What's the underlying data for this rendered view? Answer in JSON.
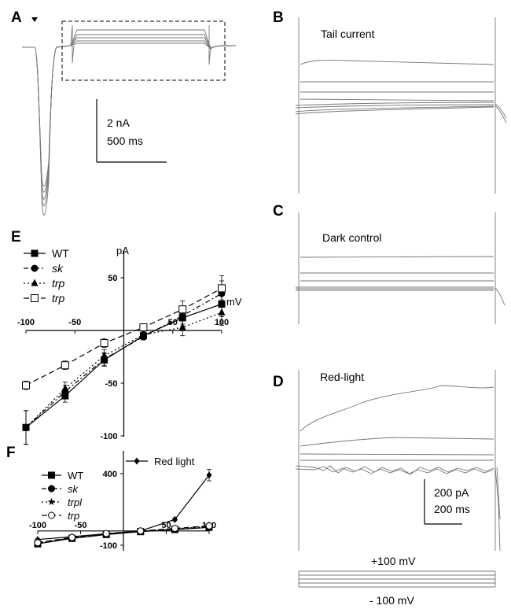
{
  "panels": {
    "A": {
      "letter": "A",
      "scale_current": "2 nA",
      "scale_time": "500 ms"
    },
    "B": {
      "letter": "B",
      "title": "Tail current"
    },
    "C": {
      "letter": "C",
      "title": "Dark control"
    },
    "D": {
      "letter": "D",
      "title": "Red-light",
      "scale_current": "200 pA",
      "scale_time": "200 ms"
    },
    "E": {
      "letter": "E"
    },
    "F": {
      "letter": "F"
    },
    "protocol": {
      "top": "+100 mV",
      "bottom": "- 100 mV"
    }
  },
  "colors": {
    "trace": "#777777",
    "axis": "#000000"
  },
  "chart_data": [
    {
      "type": "line",
      "panel": "E",
      "ylabel": "pA",
      "xlabel": "mV",
      "x": [
        -100,
        -60,
        -20,
        20,
        60,
        100
      ],
      "xticks": [
        -100,
        -50,
        50,
        100
      ],
      "yticks": [
        50,
        -50,
        -100
      ],
      "xlim": [
        -100,
        100
      ],
      "ylim": [
        -120,
        70
      ],
      "series": [
        {
          "name": "WT",
          "marker": "square-filled",
          "dash": "solid",
          "values": [
            -92,
            -62,
            -28,
            -5,
            12,
            25
          ],
          "err": [
            16,
            6,
            6,
            3,
            8,
            12
          ]
        },
        {
          "name": "sk",
          "marker": "circle-filled",
          "dash": "dashdot",
          "values": [
            -92,
            -58,
            -27,
            -6,
            14,
            35
          ],
          "err": [
            16,
            6,
            6,
            3,
            8,
            12
          ]
        },
        {
          "name": "trp",
          "marker": "triangle-filled",
          "dash": "dotted",
          "values": [
            -92,
            -55,
            -24,
            -4,
            3,
            17
          ],
          "err": [
            16,
            6,
            6,
            3,
            8,
            12
          ]
        },
        {
          "name": "trp",
          "marker": "square-open",
          "dash": "dashed",
          "values": [
            -52,
            -33,
            -12,
            3,
            20,
            40
          ],
          "err": [
            4,
            4,
            4,
            3,
            8,
            12
          ]
        }
      ]
    },
    {
      "type": "line",
      "panel": "F",
      "x": [
        -100,
        -60,
        -20,
        20,
        60,
        100
      ],
      "xticks": [
        -100,
        -50,
        50,
        100
      ],
      "yticks": [
        400,
        -100
      ],
      "xlim": [
        -100,
        100
      ],
      "ylim": [
        -110,
        480
      ],
      "series": [
        {
          "name": "Red light",
          "marker": "diamond-filled",
          "dash": "solid",
          "values": [
            -60,
            -40,
            -20,
            0,
            80,
            390
          ],
          "err": [
            5,
            5,
            5,
            5,
            10,
            40
          ]
        },
        {
          "name": "WT",
          "marker": "square-filled",
          "dash": "solid",
          "values": [
            -90,
            -52,
            -25,
            -5,
            10,
            25
          ],
          "err": [
            5,
            5,
            5,
            5,
            8,
            8
          ]
        },
        {
          "name": "sk",
          "marker": "circle-filled",
          "dash": "dashdot",
          "values": [
            -88,
            -50,
            -22,
            -3,
            12,
            28
          ],
          "err": [
            5,
            5,
            5,
            5,
            8,
            8
          ]
        },
        {
          "name": "trpl",
          "marker": "star-filled",
          "dash": "dotted",
          "values": [
            -85,
            -48,
            -20,
            -2,
            15,
            32
          ],
          "err": [
            5,
            5,
            5,
            5,
            8,
            8
          ]
        },
        {
          "name": "trp",
          "marker": "circle-open",
          "dash": "dashed",
          "values": [
            -82,
            -45,
            -18,
            0,
            18,
            35
          ],
          "err": [
            5,
            5,
            5,
            5,
            8,
            8
          ]
        }
      ]
    }
  ]
}
